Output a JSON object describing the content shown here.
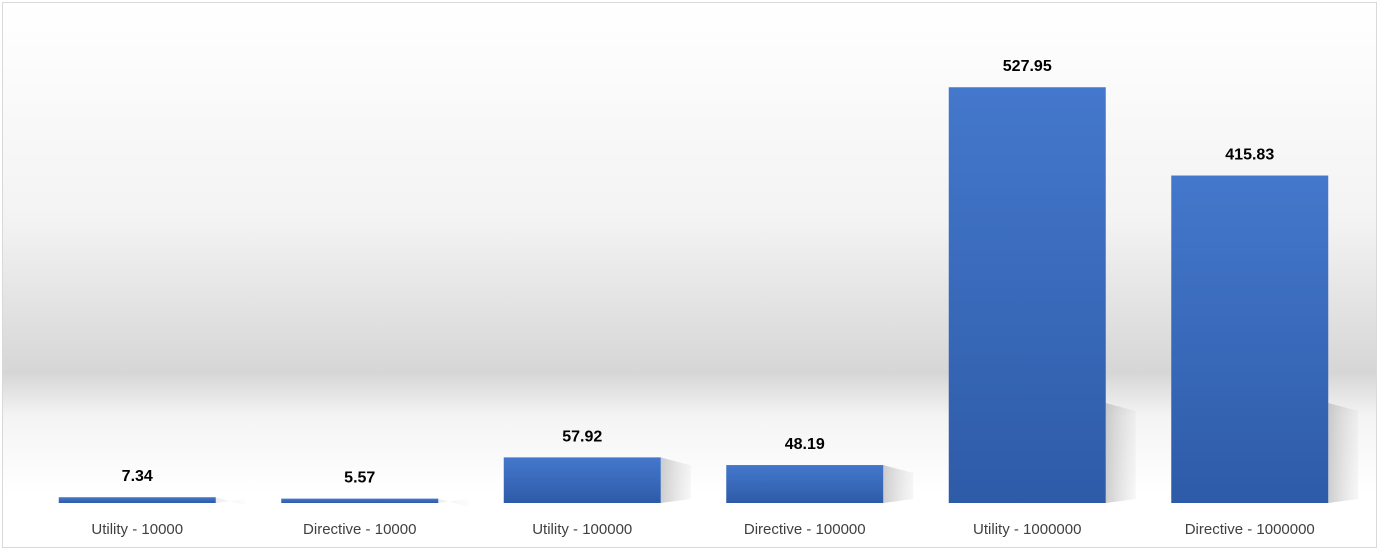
{
  "chart_data": {
    "type": "bar",
    "categories": [
      "Utility - 10000",
      "Directive - 10000",
      "Utility - 100000",
      "Directive - 100000",
      "Utility - 1000000",
      "Directive - 1000000"
    ],
    "values": [
      7.34,
      5.57,
      57.92,
      48.19,
      527.95,
      415.83
    ],
    "value_labels": [
      "7.34",
      "5.57",
      "57.92",
      "48.19",
      "527.95",
      "415.83"
    ],
    "ylim": [
      0,
      560
    ],
    "grid": false,
    "legend": "none",
    "colors": {
      "bar_top": "#4478cc",
      "bar_bottom": "#2e5ba8"
    }
  }
}
